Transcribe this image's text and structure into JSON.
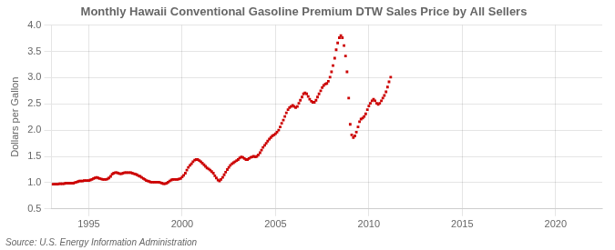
{
  "chart_data": {
    "type": "scatter",
    "title": "Monthly Hawaii Conventional Gasoline Premium DTW Sales Price by All Sellers",
    "ylabel": "Dollars per Gallon",
    "source": "Source: U.S. Energy Information Administration",
    "color": "#CC0000",
    "marker": "square",
    "grid": true,
    "xlim": [
      1993.0,
      2022.5
    ],
    "ylim": [
      0.5,
      4.0
    ],
    "xticks": [
      1995,
      2000,
      2005,
      2010,
      2015,
      2020
    ],
    "yticks": [
      0.5,
      {
        "value": 1.0,
        "label": "1.0"
      },
      1.5,
      {
        "value": 2.0,
        "label": "2.0"
      },
      2.5,
      {
        "value": 3.0,
        "label": "3.0"
      },
      3.5,
      {
        "value": 4.0,
        "label": "4.0"
      }
    ],
    "x": [
      1993.08,
      1993.17,
      1993.25,
      1993.33,
      1993.42,
      1993.5,
      1993.58,
      1993.67,
      1993.75,
      1993.83,
      1993.92,
      1994.0,
      1994.08,
      1994.17,
      1994.25,
      1994.33,
      1994.42,
      1994.5,
      1994.58,
      1994.67,
      1994.75,
      1994.83,
      1994.92,
      1995.0,
      1995.08,
      1995.17,
      1995.25,
      1995.33,
      1995.42,
      1995.5,
      1995.58,
      1995.67,
      1995.75,
      1995.83,
      1995.92,
      1996.0,
      1996.08,
      1996.17,
      1996.25,
      1996.33,
      1996.42,
      1996.5,
      1996.58,
      1996.67,
      1996.75,
      1996.83,
      1996.92,
      1997.0,
      1997.08,
      1997.17,
      1997.25,
      1997.33,
      1997.42,
      1997.5,
      1997.58,
      1997.67,
      1997.75,
      1997.83,
      1997.92,
      1998.0,
      1998.08,
      1998.17,
      1998.25,
      1998.33,
      1998.42,
      1998.5,
      1998.58,
      1998.67,
      1998.75,
      1998.83,
      1998.92,
      1999.0,
      1999.08,
      1999.17,
      1999.25,
      1999.33,
      1999.42,
      1999.5,
      1999.58,
      1999.67,
      1999.75,
      1999.83,
      1999.92,
      2000.0,
      2000.08,
      2000.17,
      2000.25,
      2000.33,
      2000.42,
      2000.5,
      2000.58,
      2000.67,
      2000.75,
      2000.83,
      2000.92,
      2001.0,
      2001.08,
      2001.17,
      2001.25,
      2001.33,
      2001.42,
      2001.5,
      2001.58,
      2001.67,
      2001.75,
      2001.83,
      2001.92,
      2002.0,
      2002.08,
      2002.17,
      2002.25,
      2002.33,
      2002.42,
      2002.5,
      2002.58,
      2002.67,
      2002.75,
      2002.83,
      2002.92,
      2003.0,
      2003.08,
      2003.17,
      2003.25,
      2003.33,
      2003.42,
      2003.5,
      2003.58,
      2003.67,
      2003.75,
      2003.83,
      2003.92,
      2004.0,
      2004.08,
      2004.17,
      2004.25,
      2004.33,
      2004.42,
      2004.5,
      2004.58,
      2004.67,
      2004.75,
      2004.83,
      2004.92,
      2005.0,
      2005.08,
      2005.17,
      2005.25,
      2005.33,
      2005.42,
      2005.5,
      2005.58,
      2005.67,
      2005.75,
      2005.83,
      2005.92,
      2006.0,
      2006.08,
      2006.17,
      2006.25,
      2006.33,
      2006.42,
      2006.5,
      2006.58,
      2006.67,
      2006.75,
      2006.83,
      2006.92,
      2007.0,
      2007.08,
      2007.17,
      2007.25,
      2007.33,
      2007.42,
      2007.5,
      2007.58,
      2007.67,
      2007.75,
      2007.83,
      2007.92,
      2008.0,
      2008.08,
      2008.17,
      2008.25,
      2008.33,
      2008.42,
      2008.5,
      2008.58,
      2008.67,
      2008.75,
      2008.83,
      2008.92,
      2009.0,
      2009.08,
      2009.17,
      2009.25,
      2009.33,
      2009.42,
      2009.5,
      2009.58,
      2009.67,
      2009.75,
      2009.83,
      2009.92,
      2010.0,
      2010.08,
      2010.17,
      2010.25,
      2010.33,
      2010.42,
      2010.5,
      2010.58,
      2010.67,
      2010.75,
      2010.83,
      2010.92,
      2011.0,
      2011.08,
      2011.17
    ],
    "values": [
      0.97,
      0.97,
      0.97,
      0.97,
      0.98,
      0.98,
      0.98,
      0.98,
      0.99,
      0.99,
      0.99,
      0.99,
      0.99,
      0.99,
      1.0,
      1.01,
      1.02,
      1.03,
      1.03,
      1.03,
      1.04,
      1.04,
      1.04,
      1.04,
      1.05,
      1.06,
      1.08,
      1.09,
      1.1,
      1.09,
      1.08,
      1.07,
      1.06,
      1.06,
      1.06,
      1.07,
      1.09,
      1.12,
      1.16,
      1.18,
      1.19,
      1.19,
      1.18,
      1.17,
      1.17,
      1.18,
      1.19,
      1.19,
      1.19,
      1.19,
      1.19,
      1.18,
      1.17,
      1.16,
      1.15,
      1.13,
      1.12,
      1.1,
      1.08,
      1.06,
      1.04,
      1.03,
      1.02,
      1.01,
      1.01,
      1.01,
      1.01,
      1.01,
      1.01,
      1.0,
      0.99,
      0.98,
      0.98,
      0.99,
      1.01,
      1.03,
      1.05,
      1.06,
      1.06,
      1.06,
      1.06,
      1.07,
      1.08,
      1.11,
      1.14,
      1.18,
      1.24,
      1.29,
      1.33,
      1.36,
      1.4,
      1.43,
      1.44,
      1.44,
      1.42,
      1.4,
      1.37,
      1.34,
      1.31,
      1.28,
      1.26,
      1.24,
      1.21,
      1.18,
      1.13,
      1.09,
      1.05,
      1.03,
      1.06,
      1.1,
      1.15,
      1.2,
      1.25,
      1.29,
      1.33,
      1.36,
      1.38,
      1.4,
      1.42,
      1.44,
      1.47,
      1.49,
      1.48,
      1.46,
      1.44,
      1.44,
      1.46,
      1.48,
      1.49,
      1.5,
      1.49,
      1.5,
      1.53,
      1.57,
      1.62,
      1.67,
      1.71,
      1.75,
      1.79,
      1.83,
      1.86,
      1.89,
      1.91,
      1.93,
      1.96,
      2.0,
      2.06,
      2.13,
      2.19,
      2.26,
      2.33,
      2.39,
      2.43,
      2.45,
      2.47,
      2.45,
      2.43,
      2.45,
      2.51,
      2.57,
      2.63,
      2.69,
      2.71,
      2.69,
      2.64,
      2.59,
      2.55,
      2.53,
      2.53,
      2.57,
      2.63,
      2.69,
      2.75,
      2.81,
      2.85,
      2.88,
      2.89,
      2.93,
      3.01,
      3.11,
      3.23,
      3.37,
      3.53,
      3.66,
      3.76,
      3.8,
      3.76,
      3.61,
      3.41,
      3.11,
      2.61,
      2.11,
      1.91,
      1.86,
      1.89,
      1.96,
      2.06,
      2.16,
      2.21,
      2.23,
      2.26,
      2.31,
      2.39,
      2.46,
      2.51,
      2.56,
      2.59,
      2.56,
      2.51,
      2.49,
      2.51,
      2.56,
      2.61,
      2.66,
      2.73,
      2.82,
      2.92,
      3.01
    ]
  }
}
